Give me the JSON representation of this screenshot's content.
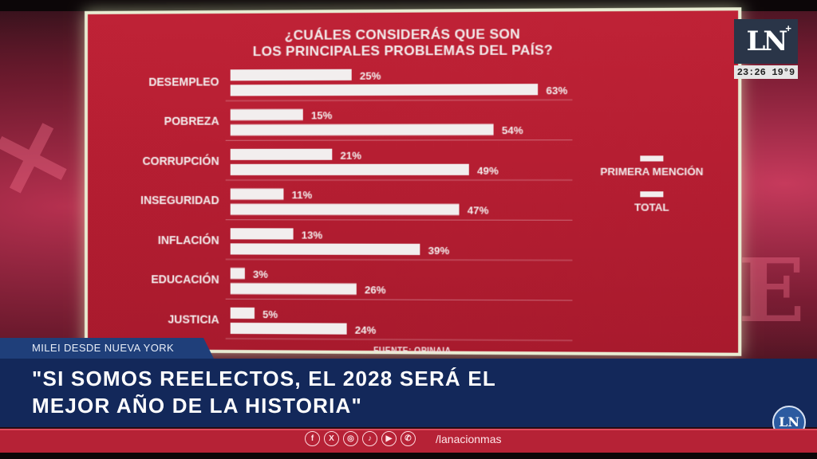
{
  "chart_data": {
    "type": "bar",
    "title_lines": [
      "¿CUÁLES CONSIDERÁS QUE SON",
      "LOS PRINCIPALES PROBLEMAS DEL PAÍS?"
    ],
    "categories": [
      "DESEMPLEO",
      "POBREZA",
      "CORRUPCIÓN",
      "INSEGURIDAD",
      "INFLACIÓN",
      "EDUCACIÓN",
      "JUSTICIA"
    ],
    "series": [
      {
        "name": "PRIMERA MENCIÓN",
        "values": [
          25,
          15,
          21,
          11,
          13,
          3,
          5
        ]
      },
      {
        "name": "TOTAL",
        "values": [
          63,
          54,
          49,
          47,
          39,
          26,
          24
        ]
      }
    ],
    "value_suffix": "%",
    "ylim": [
      0,
      100
    ],
    "legend_position": "right",
    "source": "FUENTE: OPINAIA"
  },
  "colors": {
    "panel": "#b31d31",
    "bar": "#f2eeee",
    "text": "#f3ecec",
    "navy": "#13285a",
    "tag": "#1f3f7a"
  },
  "overlay": {
    "logo": "LN",
    "logo_mark": "+",
    "clock_time": "23:26",
    "clock_temp": "19°9",
    "tag": "MILEI DESDE NUEVA YORK",
    "headline_line1": "\"SI SOMOS REELECTOS, EL 2028 SERÁ EL",
    "headline_line2": "MEJOR AÑO DE LA HISTORIA\"",
    "badge": "LN",
    "social_icons": [
      "f",
      "X",
      "◎",
      "♪",
      "▶",
      "✆"
    ],
    "social_icon_names": [
      "facebook-icon",
      "x-icon",
      "instagram-icon",
      "tiktok-icon",
      "youtube-icon",
      "whatsapp-icon"
    ],
    "handle": "/lanacionmas"
  }
}
